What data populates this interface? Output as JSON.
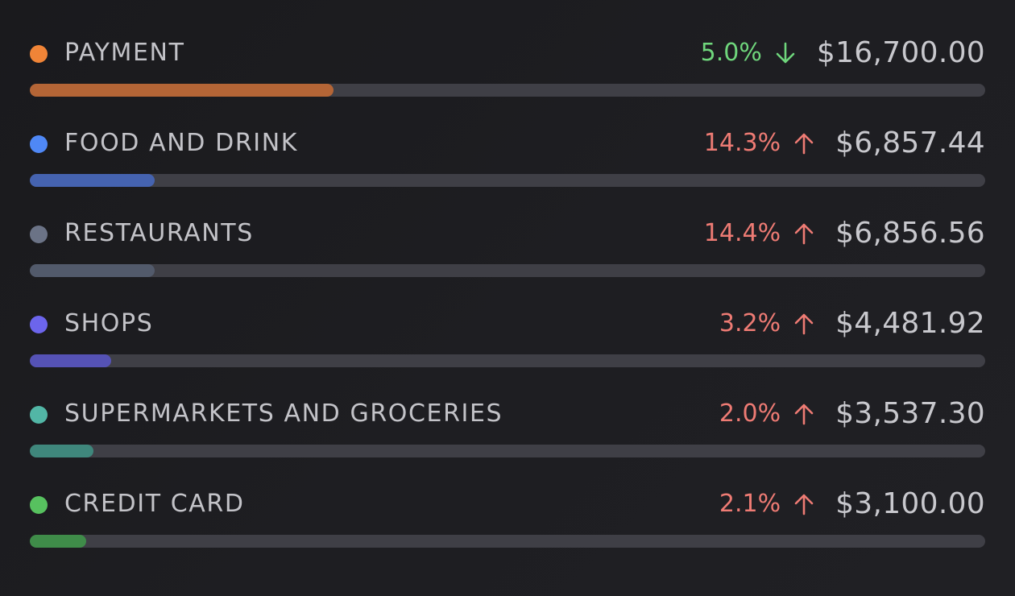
{
  "categories": [
    {
      "label": "PAYMENT",
      "change": "5.0%",
      "direction": "down",
      "amount": "$16,700.00",
      "dot_color": "#f08437",
      "bar_color": "#b46536",
      "progress": 0.318
    },
    {
      "label": "FOOD AND DRINK",
      "change": "14.3%",
      "direction": "up",
      "amount": "$6,857.44",
      "dot_color": "#4f88f6",
      "bar_color": "#4563b0",
      "progress": 0.131
    },
    {
      "label": "RESTAURANTS",
      "change": "14.4%",
      "direction": "up",
      "amount": "$6,856.56",
      "dot_color": "#6b7386",
      "bar_color": "#525a6b",
      "progress": 0.131
    },
    {
      "label": "SHOPS",
      "change": "3.2%",
      "direction": "up",
      "amount": "$4,481.92",
      "dot_color": "#6c65ec",
      "bar_color": "#5552b5",
      "progress": 0.085
    },
    {
      "label": "SUPERMARKETS AND GROCERIES",
      "change": "2.0%",
      "direction": "up",
      "amount": "$3,537.30",
      "dot_color": "#52b6a6",
      "bar_color": "#3f877c",
      "progress": 0.067
    },
    {
      "label": "CREDIT CARD",
      "change": "2.1%",
      "direction": "up",
      "amount": "$3,100.00",
      "dot_color": "#57c15f",
      "bar_color": "#3f8c49",
      "progress": 0.059
    }
  ]
}
